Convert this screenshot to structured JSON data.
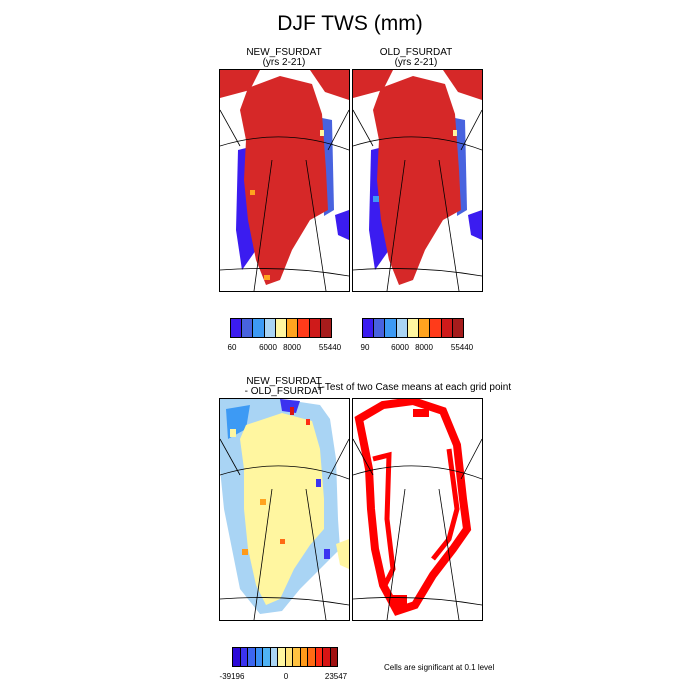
{
  "title": "DJF TWS (mm)",
  "panels": [
    {
      "title_line1": "NEW_FSURDAT",
      "title_line2": "(yrs 2-21)"
    },
    {
      "title_line1": "OLD_FSURDAT",
      "title_line2": "(yrs 2-21)"
    },
    {
      "title_line1": "NEW_FSURDAT",
      "title_line2": "- OLD_FSURDAT"
    },
    {
      "title_line1": "T-Test of two Case means at each grid point"
    }
  ],
  "colorbars": [
    {
      "colors": [
        "#3b1cf0",
        "#4863df",
        "#3d9af4",
        "#a9d4f4",
        "#fff6a0",
        "#ffa31f",
        "#ff3b1a",
        "#cf1a1a",
        "#a61c1c"
      ],
      "labels": [
        "60",
        "6000",
        "8000",
        "55440"
      ]
    },
    {
      "colors": [
        "#3b1cf0",
        "#4863df",
        "#3d9af4",
        "#a9d4f4",
        "#fff6a0",
        "#ffa31f",
        "#ff3b1a",
        "#cf1a1a",
        "#a61c1c"
      ],
      "labels": [
        "90",
        "6000",
        "8000",
        "55440"
      ]
    },
    {
      "colors": [
        "#2c0ad8",
        "#3b33f0",
        "#3c66f0",
        "#3b8ff4",
        "#4fb3f4",
        "#a9d4f4",
        "#fff6a0",
        "#ffe37a",
        "#ffc241",
        "#ff9a1a",
        "#ff6a14",
        "#ff2d14",
        "#d81414",
        "#a11212"
      ],
      "labels": [
        "-39196",
        "0",
        "23547"
      ]
    }
  ],
  "note": "Cells are significant at 0.1 level",
  "colors": {
    "red": "#d62828",
    "yellow": "#fff6a0",
    "sig_red": "#ff0000",
    "blue": "#3b1cf0"
  }
}
